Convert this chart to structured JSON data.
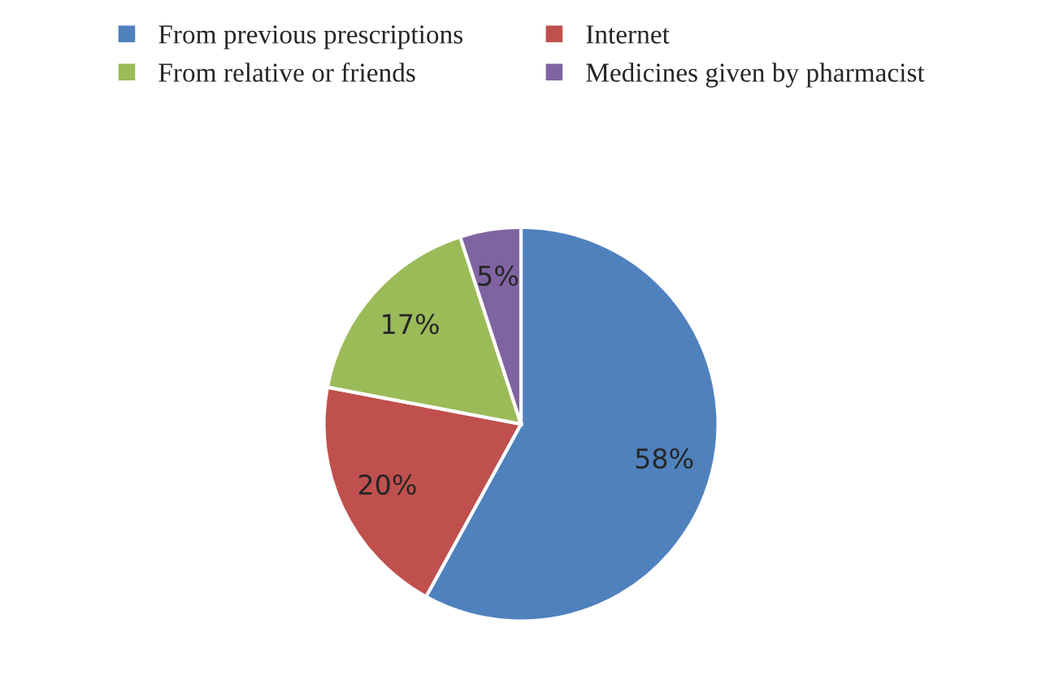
{
  "chart_data": {
    "type": "pie",
    "categories": [
      "From previous prescriptions",
      "Internet",
      "From relative or friends",
      "Medicines given by pharmacist"
    ],
    "values": [
      58,
      20,
      17,
      5
    ],
    "colors": [
      "#4f81bd",
      "#c0504d",
      "#9bbb59",
      "#8064a2"
    ],
    "value_labels": [
      "58%",
      "20%",
      "17%",
      "5%"
    ],
    "legend": "top"
  }
}
